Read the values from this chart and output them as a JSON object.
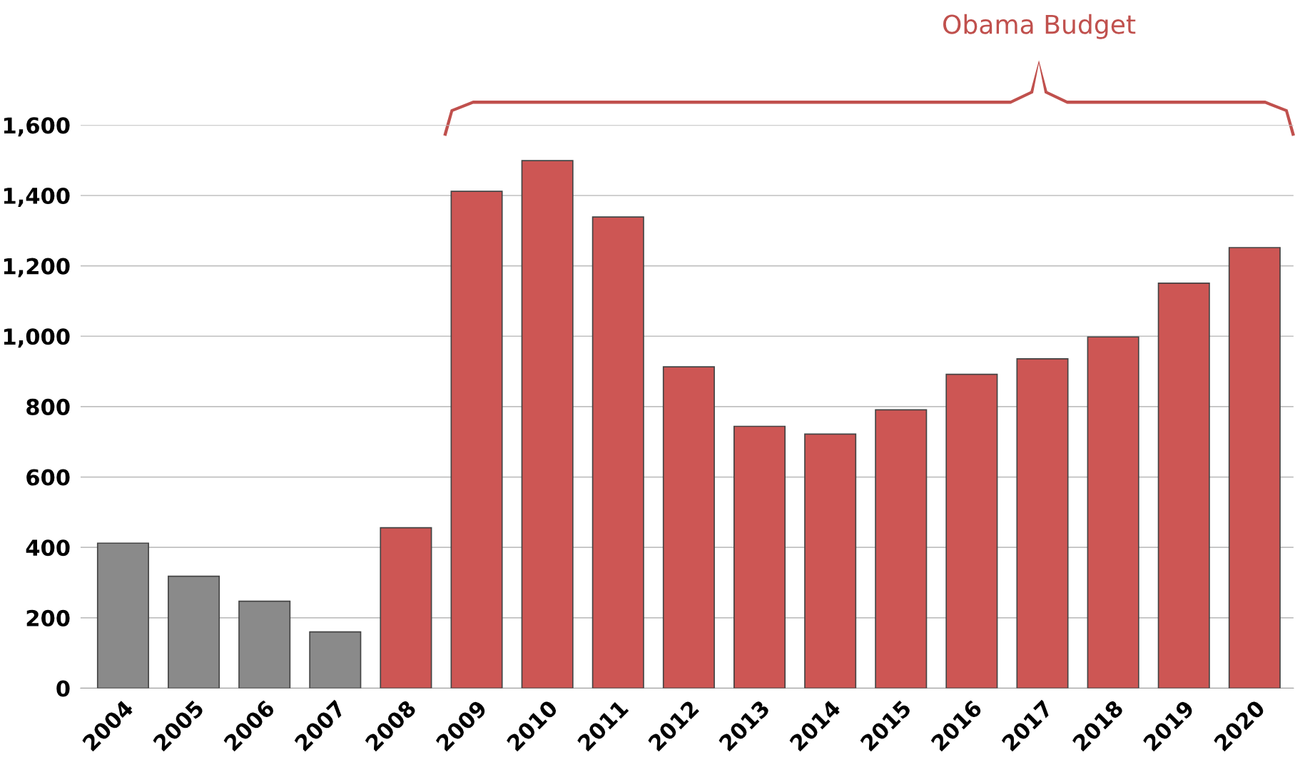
{
  "chart_data": {
    "type": "bar",
    "categories": [
      "2004",
      "2005",
      "2006",
      "2007",
      "2008",
      "2009",
      "2010",
      "2011",
      "2012",
      "2013",
      "2014",
      "2015",
      "2016",
      "2017",
      "2018",
      "2019",
      "2020"
    ],
    "values": [
      412,
      318,
      247,
      160,
      456,
      1412,
      1499,
      1339,
      913,
      744,
      722,
      791,
      892,
      936,
      998,
      1151,
      1252
    ],
    "colors": [
      "#8a8a8a",
      "#8a8a8a",
      "#8a8a8a",
      "#8a8a8a",
      "#cd5654",
      "#cd5654",
      "#cd5654",
      "#cd5654",
      "#cd5654",
      "#cd5654",
      "#cd5654",
      "#cd5654",
      "#cd5654",
      "#cd5654",
      "#cd5654",
      "#cd5654",
      "#cd5654"
    ],
    "ylim": [
      0,
      1600
    ],
    "yticks": [
      0,
      {
        "value": 200,
        "label": "200"
      },
      {
        "value": 400,
        "label": "400"
      },
      {
        "value": 600,
        "label": "600"
      },
      {
        "value": 800,
        "label": "800"
      },
      {
        "value": 1000,
        "label": "1,000"
      },
      {
        "value": 1200,
        "label": "1,200"
      },
      {
        "value": 1400,
        "label": "1,400"
      },
      {
        "value": 1600,
        "label": "1,600"
      }
    ],
    "grid": "y",
    "annotations": [
      "Obama Budget"
    ]
  }
}
